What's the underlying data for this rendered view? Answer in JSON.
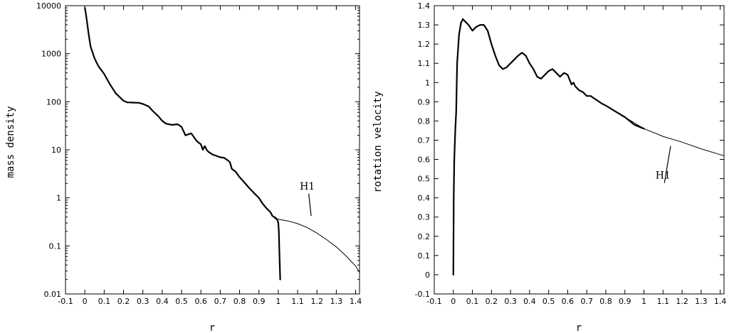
{
  "chart_data": [
    {
      "type": "line",
      "xlabel": "r",
      "ylabel": "mass density",
      "yscale": "log",
      "xlim": [
        -0.1,
        1.42
      ],
      "ylim": [
        0.01,
        10000
      ],
      "xticks": [
        "-0.1",
        "0",
        "0.1",
        "0.2",
        "0.3",
        "0.4",
        "0.5",
        "0.6",
        "0.7",
        "0.8",
        "0.9",
        "1",
        "1.1",
        "1.2",
        "1.3",
        "1.4"
      ],
      "yticks": [
        "0.01",
        "0.1",
        "1",
        "10",
        "100",
        "1000",
        "10000"
      ],
      "series": [
        {
          "style": "thick",
          "x": [
            0.0,
            0.005,
            0.01,
            0.02,
            0.03,
            0.05,
            0.07,
            0.1,
            0.13,
            0.16,
            0.2,
            0.22,
            0.25,
            0.28,
            0.3,
            0.33,
            0.35,
            0.38,
            0.4,
            0.42,
            0.45,
            0.48,
            0.5,
            0.52,
            0.55,
            0.57,
            0.58,
            0.6,
            0.61,
            0.62,
            0.63,
            0.64,
            0.66,
            0.68,
            0.7,
            0.72,
            0.74,
            0.75,
            0.76,
            0.78,
            0.8,
            0.82,
            0.85,
            0.88,
            0.9,
            0.92,
            0.94,
            0.96,
            0.97,
            0.98,
            0.99,
            0.995,
            1.0,
            1.003,
            1.005,
            1.007,
            1.01
          ],
          "y": [
            9000,
            7000,
            5000,
            2500,
            1400,
            800,
            550,
            380,
            230,
            150,
            105,
            97,
            96,
            95,
            90,
            80,
            65,
            50,
            40,
            35,
            33,
            34,
            30,
            20,
            22,
            17,
            15,
            13,
            10,
            12,
            10,
            9,
            8,
            7.5,
            7,
            6.8,
            6,
            5.5,
            4,
            3.5,
            2.7,
            2.2,
            1.6,
            1.2,
            1.0,
            0.75,
            0.6,
            0.5,
            0.42,
            0.4,
            0.37,
            0.35,
            0.3,
            0.2,
            0.1,
            0.05,
            0.02
          ]
        },
        {
          "style": "thin",
          "x": [
            0.98,
            1.0,
            1.05,
            1.1,
            1.15,
            1.2,
            1.25,
            1.3,
            1.35,
            1.4,
            1.42
          ],
          "y": [
            0.37,
            0.36,
            0.33,
            0.29,
            0.24,
            0.185,
            0.135,
            0.095,
            0.062,
            0.038,
            0.028
          ]
        }
      ],
      "annotations": [
        {
          "text": "H1",
          "x": 1.15,
          "y": 1.5,
          "pointer_to": [
            1.17,
            0.42
          ]
        }
      ]
    },
    {
      "type": "line",
      "xlabel": "r",
      "ylabel": "rotation velocity",
      "xlim": [
        -0.1,
        1.42
      ],
      "ylim": [
        -0.1,
        1.4
      ],
      "xticks": [
        "-0.1",
        "0",
        "0.1",
        "0.2",
        "0.3",
        "0.4",
        "0.5",
        "0.6",
        "0.7",
        "0.8",
        "0.9",
        "1",
        "1.1",
        "1.2",
        "1.3",
        "1.4"
      ],
      "yticks": [
        "-0.1",
        "0",
        "0.1",
        "0.2",
        "0.3",
        "0.4",
        "0.5",
        "0.6",
        "0.7",
        "0.8",
        "0.9",
        "1",
        "1.1",
        "1.2",
        "1.3",
        "1.4"
      ],
      "series": [
        {
          "style": "thick",
          "x": [
            0.0,
            0.002,
            0.005,
            0.01,
            0.015,
            0.02,
            0.03,
            0.04,
            0.05,
            0.06,
            0.07,
            0.08,
            0.1,
            0.12,
            0.14,
            0.16,
            0.18,
            0.2,
            0.22,
            0.24,
            0.26,
            0.28,
            0.3,
            0.32,
            0.34,
            0.36,
            0.38,
            0.4,
            0.42,
            0.44,
            0.46,
            0.48,
            0.5,
            0.52,
            0.54,
            0.56,
            0.58,
            0.6,
            0.62,
            0.63,
            0.64,
            0.66,
            0.68,
            0.7,
            0.72,
            0.75,
            0.78,
            0.8,
            0.85,
            0.9,
            0.95,
            1.0
          ],
          "y": [
            0.0,
            0.4,
            0.6,
            0.75,
            0.85,
            1.1,
            1.25,
            1.31,
            1.33,
            1.32,
            1.31,
            1.3,
            1.27,
            1.29,
            1.3,
            1.3,
            1.27,
            1.2,
            1.14,
            1.09,
            1.07,
            1.08,
            1.1,
            1.12,
            1.14,
            1.155,
            1.14,
            1.1,
            1.07,
            1.03,
            1.02,
            1.04,
            1.06,
            1.07,
            1.05,
            1.03,
            1.05,
            1.04,
            0.99,
            1.0,
            0.98,
            0.96,
            0.95,
            0.93,
            0.93,
            0.91,
            0.89,
            0.88,
            0.85,
            0.82,
            0.78,
            0.76
          ]
        },
        {
          "style": "thin",
          "x": [
            0.8,
            0.9,
            1.0,
            1.1,
            1.2,
            1.3,
            1.4,
            1.42
          ],
          "y": [
            0.88,
            0.82,
            0.76,
            0.72,
            0.69,
            0.655,
            0.625,
            0.62
          ]
        }
      ],
      "annotations": [
        {
          "text": "H1",
          "x": 1.1,
          "y": 0.5,
          "pointer_to": [
            1.14,
            0.67
          ]
        }
      ]
    }
  ]
}
